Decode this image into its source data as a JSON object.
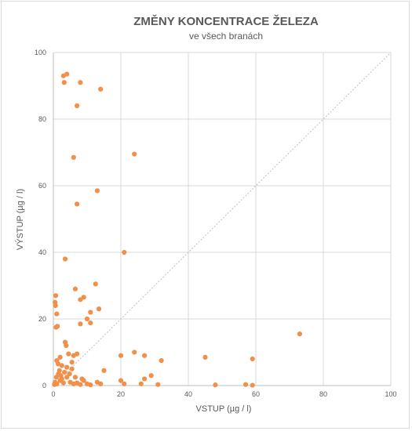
{
  "chart_data": {
    "type": "scatter",
    "title": "ZMĚNY KONCENTRACE ŽELEZA",
    "subtitle": "ve všech branách",
    "xlabel": "VSTUP (µg / l)",
    "ylabel": "VÝSTUP (µg / l)",
    "xlim": [
      0,
      100
    ],
    "ylim": [
      0,
      100
    ],
    "xticks": [
      0,
      20,
      40,
      60,
      80,
      100
    ],
    "yticks": [
      0,
      20,
      40,
      60,
      80,
      100
    ],
    "grid": true,
    "reference_line": "y = x",
    "marker_color": "#f0904a",
    "points": [
      [
        3.0,
        93.0
      ],
      [
        4.0,
        93.5
      ],
      [
        3.2,
        91.0
      ],
      [
        8.0,
        91.0
      ],
      [
        14.0,
        89.0
      ],
      [
        7.0,
        84.0
      ],
      [
        24.0,
        69.5
      ],
      [
        6.0,
        68.5
      ],
      [
        13.0,
        58.5
      ],
      [
        7.0,
        54.5
      ],
      [
        21.0,
        40.0
      ],
      [
        3.5,
        38.0
      ],
      [
        12.5,
        30.5
      ],
      [
        0.7,
        27.0
      ],
      [
        6.5,
        29.0
      ],
      [
        0.5,
        25.0
      ],
      [
        0.6,
        24.0
      ],
      [
        8.0,
        25.8
      ],
      [
        9.0,
        26.5
      ],
      [
        13.5,
        23.0
      ],
      [
        11.0,
        22.0
      ],
      [
        10.0,
        20.0
      ],
      [
        1.0,
        21.5
      ],
      [
        0.8,
        17.5
      ],
      [
        1.2,
        17.8
      ],
      [
        8.0,
        18.5
      ],
      [
        11.0,
        18.8
      ],
      [
        3.5,
        13.0
      ],
      [
        3.8,
        12.0
      ],
      [
        2.0,
        8.5
      ],
      [
        1.0,
        7.5
      ],
      [
        4.5,
        9.5
      ],
      [
        6.0,
        9.0
      ],
      [
        7.0,
        9.5
      ],
      [
        2.5,
        6.0
      ],
      [
        4.0,
        5.5
      ],
      [
        5.5,
        5.0
      ],
      [
        24.0,
        10.0
      ],
      [
        27.0,
        9.0
      ],
      [
        20.0,
        9.0
      ],
      [
        15.0,
        4.5
      ],
      [
        32.0,
        7.5
      ],
      [
        45.0,
        8.5
      ],
      [
        59.0,
        8.0
      ],
      [
        73.0,
        15.5
      ],
      [
        1.5,
        3.5
      ],
      [
        2.5,
        2.0
      ],
      [
        0.5,
        1.0
      ],
      [
        1.0,
        0.5
      ],
      [
        0.3,
        0.3
      ],
      [
        2.0,
        1.5
      ],
      [
        3.0,
        0.8
      ],
      [
        4.0,
        2.5
      ],
      [
        5.0,
        1.0
      ],
      [
        6.0,
        0.5
      ],
      [
        7.0,
        0.8
      ],
      [
        8.0,
        0.3
      ],
      [
        9.0,
        1.5
      ],
      [
        10.0,
        0.5
      ],
      [
        11.0,
        0.2
      ],
      [
        13.0,
        1.0
      ],
      [
        14.0,
        0.5
      ],
      [
        20.0,
        1.5
      ],
      [
        21.0,
        0.5
      ],
      [
        27.0,
        2.0
      ],
      [
        26.0,
        0.5
      ],
      [
        29.0,
        3.0
      ],
      [
        31.0,
        0.3
      ],
      [
        48.0,
        0.2
      ],
      [
        57.0,
        0.3
      ],
      [
        59.0,
        0.1
      ],
      [
        1.8,
        4.5
      ],
      [
        2.2,
        3.0
      ],
      [
        0.9,
        2.5
      ],
      [
        3.3,
        4.0
      ],
      [
        1.4,
        6.5
      ],
      [
        4.8,
        3.5
      ],
      [
        6.5,
        2.5
      ],
      [
        8.5,
        2.0
      ],
      [
        5.5,
        7.0
      ]
    ]
  }
}
